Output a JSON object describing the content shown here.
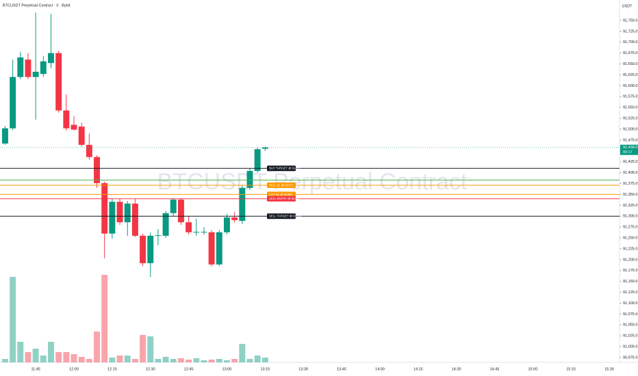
{
  "chart_data": {
    "type": "candlestick",
    "title": "BTCUSDT Perpetual Contract · 3 · Bybit",
    "watermark": "BTCUSDT Perpetual Contract",
    "y_axis_label": "USDT",
    "up_color": "#089981",
    "down_color": "#f23645",
    "x": [
      "11:33",
      "11:36",
      "11:39",
      "11:42",
      "11:45",
      "11:48",
      "11:51",
      "11:54",
      "11:57",
      "12:00",
      "12:03",
      "12:06",
      "12:09",
      "12:12",
      "12:15",
      "12:18",
      "12:21",
      "12:24",
      "12:27",
      "12:30",
      "12:33",
      "12:36",
      "12:39",
      "12:42",
      "12:45",
      "12:48",
      "12:51",
      "12:54",
      "12:57",
      "13:00",
      "13:03",
      "13:06",
      "13:09",
      "13:12",
      "13:15"
    ],
    "open": [
      91467,
      91502,
      91620,
      91660,
      91620,
      91627,
      91652,
      91675,
      91543,
      91510,
      91506,
      91464,
      91436,
      91376,
      91260,
      91333,
      91286,
      91329,
      91255,
      91192,
      91255,
      91255,
      91307,
      91338,
      91286,
      91263,
      91263,
      91263,
      91189,
      91263,
      91297,
      91289,
      91365,
      91404,
      91455
    ],
    "high": [
      91507,
      91660,
      91678,
      91675,
      91768,
      91668,
      91765,
      91680,
      91580,
      91530,
      91515,
      91490,
      91440,
      91380,
      91340,
      91340,
      91335,
      91340,
      91260,
      91262,
      91270,
      91312,
      91342,
      91342,
      91300,
      91294,
      91275,
      91268,
      91268,
      91305,
      91310,
      91370,
      91410,
      91458,
      91460
    ],
    "low": [
      91464,
      91498,
      91615,
      91615,
      91522,
      91620,
      91640,
      91538,
      91497,
      91497,
      91460,
      91430,
      91365,
      91203,
      91248,
      91280,
      91255,
      91252,
      91185,
      91160,
      91233,
      91250,
      91300,
      91280,
      91258,
      91255,
      91258,
      91185,
      91185,
      91258,
      91285,
      91282,
      91360,
      91400,
      91450
    ],
    "close": [
      91502,
      91620,
      91665,
      91620,
      91632,
      91656,
      91675,
      91543,
      91502,
      91499,
      91464,
      91436,
      91376,
      91260,
      91333,
      91286,
      91329,
      91255,
      91192,
      91255,
      91256,
      91307,
      91338,
      91286,
      91263,
      91264,
      91264,
      91189,
      91263,
      91297,
      91291,
      91365,
      91404,
      91454,
      91458
    ],
    "volume": [
      5,
      125,
      30,
      15,
      20,
      10,
      30,
      15,
      15,
      12,
      8,
      5,
      45,
      128,
      7,
      10,
      10,
      5,
      40,
      38,
      5,
      8,
      5,
      6,
      4,
      6,
      3,
      4,
      5,
      3,
      5,
      27,
      5,
      10,
      7
    ],
    "levels": [
      {
        "price": 91410,
        "color": "#131722",
        "label": "BUY TARGET @ 91410"
      },
      {
        "price": 91383,
        "color": "#4caf50",
        "label": null
      },
      {
        "price": 91371,
        "color": "#ff9800",
        "label": "SELL SL @ 91371"
      },
      {
        "price": 91350,
        "color": "#ff9800",
        "label": "BUY SL @ 91350"
      },
      {
        "price": 91340,
        "color": "#f23645",
        "label": "SELL ENTRY @ 91340"
      },
      {
        "price": 91300,
        "color": "#131722",
        "label": "SELL TARGET @ 91300"
      }
    ],
    "current_price": {
      "value": 91458,
      "label": "91,458.0"
    },
    "countdown": "00:17",
    "xlim": [
      "11:31",
      "15:34"
    ],
    "xticks": [
      "11:45",
      "12:00",
      "12:15",
      "12:30",
      "12:45",
      "13:00",
      "13:15",
      "13:30",
      "13:45",
      "14:00",
      "14:15",
      "14:30",
      "14:45",
      "15:00",
      "15:15",
      "15:30"
    ],
    "ylim": [
      90964,
      91797
    ],
    "yticks": [
      {
        "value": 91750,
        "label": "91,750.0"
      },
      {
        "value": 91725,
        "label": "91,725.0"
      },
      {
        "value": 91700,
        "label": "91,700.0"
      },
      {
        "value": 91675,
        "label": "91,675.0"
      },
      {
        "value": 91650,
        "label": "91,650.0"
      },
      {
        "value": 91625,
        "label": "91,625.0"
      },
      {
        "value": 91600,
        "label": "91,600.0"
      },
      {
        "value": 91575,
        "label": "91,575.0"
      },
      {
        "value": 91550,
        "label": "91,550.0"
      },
      {
        "value": 91525,
        "label": "91,525.0"
      },
      {
        "value": 91500,
        "label": "91,500.0"
      },
      {
        "value": 91475,
        "label": "91,475.0"
      },
      {
        "value": 91450,
        "label": "91,450.0"
      },
      {
        "value": 91425,
        "label": "91,425.0"
      },
      {
        "value": 91400,
        "label": "91,400.0"
      },
      {
        "value": 91375,
        "label": "91,375.0"
      },
      {
        "value": 91350,
        "label": "91,350.0"
      },
      {
        "value": 91325,
        "label": "91,325.0"
      },
      {
        "value": 91300,
        "label": "91,300.0"
      },
      {
        "value": 91275,
        "label": "91,275.0"
      },
      {
        "value": 91250,
        "label": "91,250.0"
      },
      {
        "value": 91225,
        "label": "91,225.0"
      },
      {
        "value": 91200,
        "label": "91,200.0"
      },
      {
        "value": 91175,
        "label": "91,175.0"
      },
      {
        "value": 91150,
        "label": "91,150.0"
      },
      {
        "value": 91125,
        "label": "91,125.0"
      },
      {
        "value": 91100,
        "label": "91,100.0"
      },
      {
        "value": 91075,
        "label": "91,075.0"
      },
      {
        "value": 91050,
        "label": "91,050.0"
      },
      {
        "value": 91025,
        "label": "91,025.0"
      },
      {
        "value": 91000,
        "label": "91,000.0"
      },
      {
        "value": 90975,
        "label": "90,975.0"
      }
    ]
  }
}
